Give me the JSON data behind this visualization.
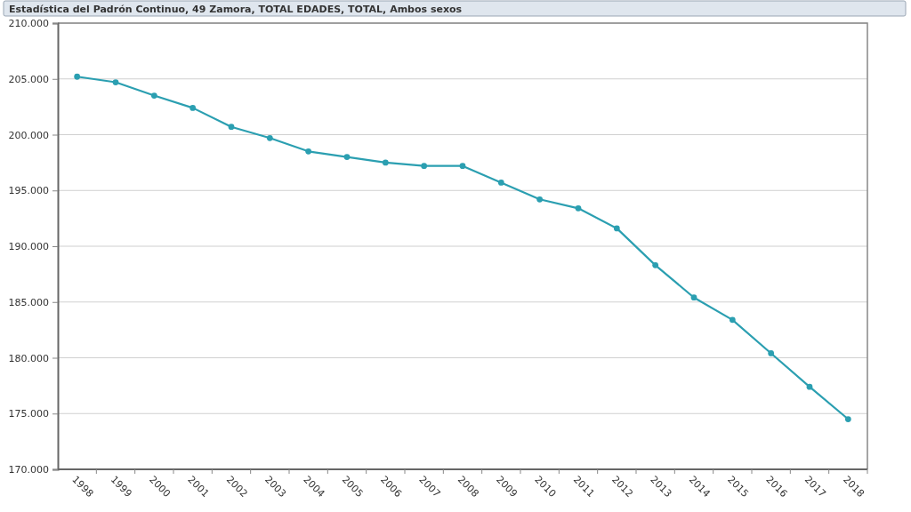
{
  "chart_data": {
    "type": "line",
    "title": "Estadística del Padrón Continuo, 49 Zamora, TOTAL EDADES, TOTAL, Ambos sexos",
    "categories": [
      "1998",
      "1999",
      "2000",
      "2001",
      "2002",
      "2003",
      "2004",
      "2005",
      "2006",
      "2007",
      "2008",
      "2009",
      "2010",
      "2011",
      "2012",
      "2013",
      "2014",
      "2015",
      "2016",
      "2017",
      "2018"
    ],
    "series": [
      {
        "color": "#2b9fb1",
        "values": [
          205200,
          204700,
          203500,
          202400,
          200700,
          199700,
          198500,
          198000,
          197500,
          197200,
          197200,
          195700,
          194200,
          193400,
          191600,
          188300,
          185400,
          183400,
          180400,
          177400,
          174500
        ]
      }
    ],
    "ylim": [
      170000,
      210000
    ],
    "yticks": [
      {
        "value": 170000,
        "label": "170.000"
      },
      {
        "value": 175000,
        "label": "175.000"
      },
      {
        "value": 180000,
        "label": "180.000"
      },
      {
        "value": 185000,
        "label": "185.000"
      },
      {
        "value": 190000,
        "label": "190.000"
      },
      {
        "value": 195000,
        "label": "195.000"
      },
      {
        "value": 200000,
        "label": "200.000"
      },
      {
        "value": 205000,
        "label": "205.000"
      },
      {
        "value": 210000,
        "label": "210.000"
      }
    ],
    "grid": "y",
    "marker": "circle",
    "line_style": "solid"
  }
}
